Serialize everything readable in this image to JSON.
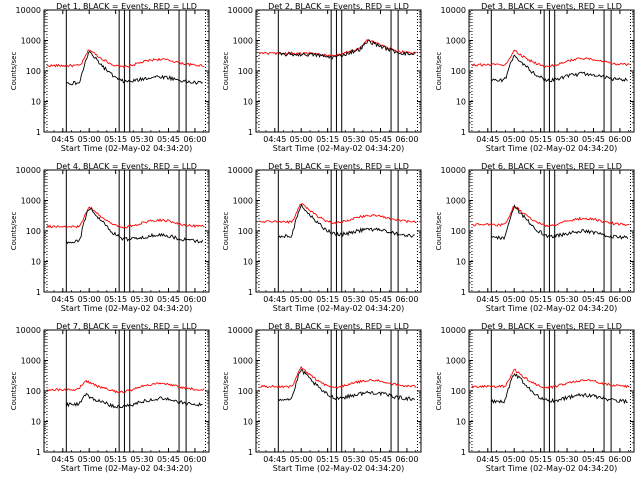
{
  "figure": {
    "panels": [
      {
        "title": "Det 1, BLACK = Events, RED = LLD",
        "peak_x": "05:00",
        "events_base": 40,
        "lld_base": 150,
        "peak_events": 430,
        "peak_lld": 520
      },
      {
        "title": "Det 2, BLACK = Events, RED = LLD",
        "peak_x": "05:38",
        "events_base": 350,
        "lld_base": 380,
        "peak_events": 620,
        "peak_lld": 700
      },
      {
        "title": "Det 3, BLACK = Events, RED = LLD",
        "peak_x": "05:00",
        "events_base": 50,
        "lld_base": 160,
        "peak_events": 330,
        "peak_lld": 480
      },
      {
        "title": "Det 4, BLACK = Events, RED = LLD",
        "peak_x": "05:00",
        "events_base": 45,
        "lld_base": 140,
        "peak_events": 600,
        "peak_lld": 650
      },
      {
        "title": "Det 5, BLACK = Events, RED = LLD",
        "peak_x": "05:00",
        "events_base": 70,
        "lld_base": 200,
        "peak_events": 700,
        "peak_lld": 800
      },
      {
        "title": "Det 6, BLACK = Events, RED = LLD",
        "peak_x": "05:00",
        "events_base": 60,
        "lld_base": 160,
        "peak_events": 650,
        "peak_lld": 700
      },
      {
        "title": "Det 7, BLACK = Events, RED = LLD",
        "peak_x": "04:58",
        "events_base": 35,
        "lld_base": 110,
        "peak_events": 80,
        "peak_lld": 220
      },
      {
        "title": "Det 8, BLACK = Events, RED = LLD",
        "peak_x": "05:00",
        "events_base": 55,
        "lld_base": 140,
        "peak_events": 500,
        "peak_lld": 600
      },
      {
        "title": "Det 9, BLACK = Events, RED = LLD",
        "peak_x": "05:00",
        "events_base": 45,
        "lld_base": 140,
        "peak_events": 400,
        "peak_lld": 520
      }
    ],
    "xlabel": "Start Time (02-May-02 04:34:20)",
    "ylabel": "Counts/sec",
    "xticks": [
      "04:45",
      "05:00",
      "05:15",
      "05:30",
      "05:45",
      "06:00"
    ],
    "yticks": [
      "1",
      "10",
      "100",
      "1000",
      "10000"
    ],
    "colors": {
      "events": "#000000",
      "lld": "#ff0000"
    }
  },
  "chart_data": {
    "type": "line",
    "yscale": "log",
    "ylim": [
      1,
      10000
    ],
    "x_ticks": [
      "04:45",
      "05:00",
      "05:15",
      "05:30",
      "05:45",
      "06:00"
    ],
    "series_names": [
      "Events",
      "LLD"
    ],
    "vertical_markers_approx": [
      "04:47",
      "05:17",
      "05:20",
      "05:23",
      "05:51",
      "05:55"
    ]
  }
}
